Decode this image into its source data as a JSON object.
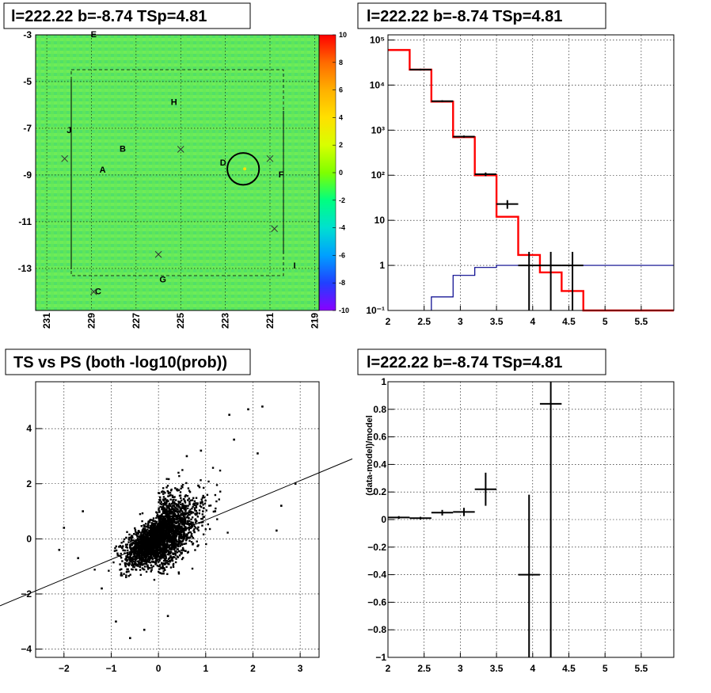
{
  "panels": {
    "skymap_title": "l=222.22 b=-8.74 TSp=4.81",
    "spectrum_title": "l=222.22 b=-8.74 TSp=4.81",
    "scatter_title": "TS vs PS (both -log10(prob))",
    "residual_title": "l=222.22 b=-8.74 TSp=4.81"
  },
  "chart_data": [
    {
      "type": "heatmap",
      "title": "l=222.22 b=-8.74 TSp=4.81",
      "x_ticks": [
        "231",
        "229",
        "227",
        "225",
        "223",
        "221",
        "219"
      ],
      "x_tick_values": [
        231,
        229,
        227,
        225,
        223,
        221,
        219
      ],
      "xlim": [
        231.5,
        218.8
      ],
      "y_ticks": [
        "-3",
        "-5",
        "-7",
        "-9",
        "-11",
        "-13"
      ],
      "y_tick_values": [
        -3,
        -5,
        -7,
        -9,
        -11,
        -13
      ],
      "ylim": [
        -14.8,
        -3
      ],
      "colorbar_ticks": [
        "10",
        "8",
        "6",
        "4",
        "2",
        "0",
        "-2",
        "-4",
        "-6",
        "-8",
        "-10"
      ],
      "colorbar_range": [
        -10,
        10
      ],
      "colorbar_colors": [
        "#ff0000",
        "#ff6a00",
        "#ffb000",
        "#ffe000",
        "#d8ff00",
        "#7fff00",
        "#00ff80",
        "#00e0d0",
        "#00a0ff",
        "#0050ff",
        "#4000ff",
        "#8a00ff"
      ],
      "background_color": "#5ee65a",
      "grid": true,
      "source_labels": [
        {
          "text": "E",
          "l": 228.9,
          "b": -3.1
        },
        {
          "text": "H",
          "l": 225.3,
          "b": -6.0
        },
        {
          "text": "J",
          "l": 230.0,
          "b": -7.2
        },
        {
          "text": "B",
          "l": 227.6,
          "b": -8.0
        },
        {
          "text": "A",
          "l": 228.5,
          "b": -8.9
        },
        {
          "text": "D",
          "l": 223.1,
          "b": -8.6
        },
        {
          "text": "F",
          "l": 220.5,
          "b": -9.1
        },
        {
          "text": "I",
          "l": 219.9,
          "b": -13.0
        },
        {
          "text": "G",
          "l": 225.8,
          "b": -13.6
        },
        {
          "text": "C",
          "l": 228.7,
          "b": -14.1
        }
      ],
      "crosses": [
        {
          "l": 230.2,
          "b": -8.3
        },
        {
          "l": 225.0,
          "b": -7.9
        },
        {
          "l": 221.0,
          "b": -8.3
        },
        {
          "l": 226.0,
          "b": -12.4
        },
        {
          "l": 228.9,
          "b": -14.0
        },
        {
          "l": 220.8,
          "b": -11.3
        }
      ],
      "circle": {
        "l": 222.2,
        "b": -8.74,
        "radius_deg": 0.5
      }
    },
    {
      "type": "line",
      "title": "l=222.22 b=-8.74 TSp=4.81",
      "x_ticks": [
        "2",
        "2.5",
        "3",
        "3.5",
        "4",
        "4.5",
        "5",
        "5.5"
      ],
      "x_tick_values": [
        2,
        2.5,
        3,
        3.5,
        4,
        4.5,
        5,
        5.5
      ],
      "xlim": [
        2,
        5.95
      ],
      "y_scale": "log",
      "y_ticks": [
        "10⁵",
        "10⁴",
        "10³",
        "10²",
        "10",
        "1",
        "10⁻¹"
      ],
      "y_tick_values": [
        100000,
        10000,
        1000,
        100,
        10,
        1,
        0.1
      ],
      "ylim": [
        0.1,
        130000
      ],
      "grid": true,
      "series": [
        {
          "color": "#ff0000",
          "kind": "step",
          "edges": [
            2.0,
            2.3,
            2.6,
            2.9,
            3.2,
            3.5,
            3.8,
            4.1,
            4.4,
            4.7,
            5.95
          ],
          "values": [
            60000,
            22000,
            4300,
            700,
            100,
            12,
            1.7,
            0.7,
            0.27,
            0.1
          ]
        },
        {
          "color": "#00008b",
          "kind": "step",
          "edges": [
            2.6,
            2.9,
            3.2,
            3.5,
            3.8,
            4.1,
            4.4,
            4.7,
            5.0,
            5.95
          ],
          "values": [
            0.2,
            0.6,
            0.9,
            1.0,
            1.0,
            1.0,
            1.0,
            1.0,
            1.0
          ]
        }
      ],
      "data_points": [
        {
          "x": 2.45,
          "y": 22000,
          "xerr": 0.15,
          "ylo": 21000,
          "yhi": 23000
        },
        {
          "x": 2.75,
          "y": 4400,
          "xerr": 0.15,
          "ylo": 4200,
          "yhi": 4600
        },
        {
          "x": 3.05,
          "y": 720,
          "xerr": 0.15,
          "ylo": 680,
          "yhi": 760
        },
        {
          "x": 3.35,
          "y": 105,
          "xerr": 0.15,
          "ylo": 95,
          "yhi": 115
        },
        {
          "x": 3.65,
          "y": 23,
          "xerr": 0.15,
          "ylo": 18,
          "yhi": 28
        },
        {
          "x": 3.95,
          "y": 1.0,
          "xerr": 0.15,
          "ylo": 0.1,
          "yhi": 2.0
        },
        {
          "x": 4.25,
          "y": 1.0,
          "xerr": 0.15,
          "ylo": 0.1,
          "yhi": 2.0
        },
        {
          "x": 4.55,
          "y": 1.0,
          "xerr": 0.15,
          "ylo": 0.1,
          "yhi": 2.0
        }
      ]
    },
    {
      "type": "scatter",
      "title": "TS vs PS (both -log10(prob))",
      "x_ticks": [
        "−2",
        "−1",
        "0",
        "1",
        "2",
        "3"
      ],
      "x_tick_values": [
        -2,
        -1,
        0,
        1,
        2,
        3
      ],
      "xlim": [
        -2.6,
        3.4
      ],
      "y_ticks": [
        "4",
        "2",
        "0",
        "−2",
        "−4"
      ],
      "y_tick_values": [
        4,
        2,
        0,
        -2,
        -4
      ],
      "ylim": [
        -4.3,
        5.7
      ],
      "grid": true,
      "fit_line": {
        "slope": 0.82,
        "intercept": -0.05
      },
      "points_summary": "dense cluster near origin, ~4000 points, positively correlated",
      "outliers": [
        [
          -2.1,
          -0.4
        ],
        [
          -2.0,
          0.4
        ],
        [
          -1.7,
          -0.7
        ],
        [
          -1.6,
          1.0
        ],
        [
          -0.9,
          -3.0
        ],
        [
          -0.6,
          -3.6
        ],
        [
          -0.3,
          -3.3
        ],
        [
          1.5,
          4.5
        ],
        [
          1.9,
          4.7
        ],
        [
          2.2,
          4.8
        ],
        [
          2.9,
          2.0
        ],
        [
          2.5,
          0.3
        ],
        [
          1.6,
          3.6
        ],
        [
          2.1,
          3.1
        ],
        [
          -1.2,
          -1.8
        ],
        [
          1.2,
          1.0
        ],
        [
          0.9,
          3.2
        ],
        [
          0.6,
          3.0
        ],
        [
          2.6,
          1.2
        ],
        [
          0.2,
          -2.8
        ]
      ]
    },
    {
      "type": "scatter",
      "title": "l=222.22 b=-8.74 TSp=4.81",
      "ylabel": "(data-model)/model",
      "x_ticks": [
        "2",
        "2.5",
        "3",
        "3.5",
        "4",
        "4.5",
        "5",
        "5.5"
      ],
      "x_tick_values": [
        2,
        2.5,
        3,
        3.5,
        4,
        4.5,
        5,
        5.5
      ],
      "xlim": [
        2,
        5.95
      ],
      "y_ticks": [
        "1",
        "0.8",
        "0.6",
        "0.4",
        "0.2",
        "0",
        "−0.2",
        "−0.4",
        "−0.6",
        "−0.8",
        "−1"
      ],
      "y_tick_values": [
        1,
        0.8,
        0.6,
        0.4,
        0.2,
        0,
        -0.2,
        -0.4,
        -0.6,
        -0.8,
        -1
      ],
      "ylim": [
        -1,
        1
      ],
      "grid": true,
      "data_points": [
        {
          "x": 2.15,
          "y": 0.015,
          "xerr": 0.15,
          "yerr": 0.01
        },
        {
          "x": 2.45,
          "y": 0.01,
          "xerr": 0.15,
          "yerr": 0.01
        },
        {
          "x": 2.75,
          "y": 0.05,
          "xerr": 0.15,
          "yerr": 0.02
        },
        {
          "x": 3.05,
          "y": 0.055,
          "xerr": 0.15,
          "yerr": 0.03
        },
        {
          "x": 3.35,
          "y": 0.22,
          "xerr": 0.15,
          "yerr": 0.12
        },
        {
          "x": 3.95,
          "y": -0.4,
          "xerr": 0.15,
          "ylo": -1.0,
          "yhi": 0.18
        },
        {
          "x": 4.25,
          "y": 0.84,
          "xerr": 0.15,
          "ylo": -1.0,
          "yhi": 1.0
        }
      ]
    }
  ]
}
